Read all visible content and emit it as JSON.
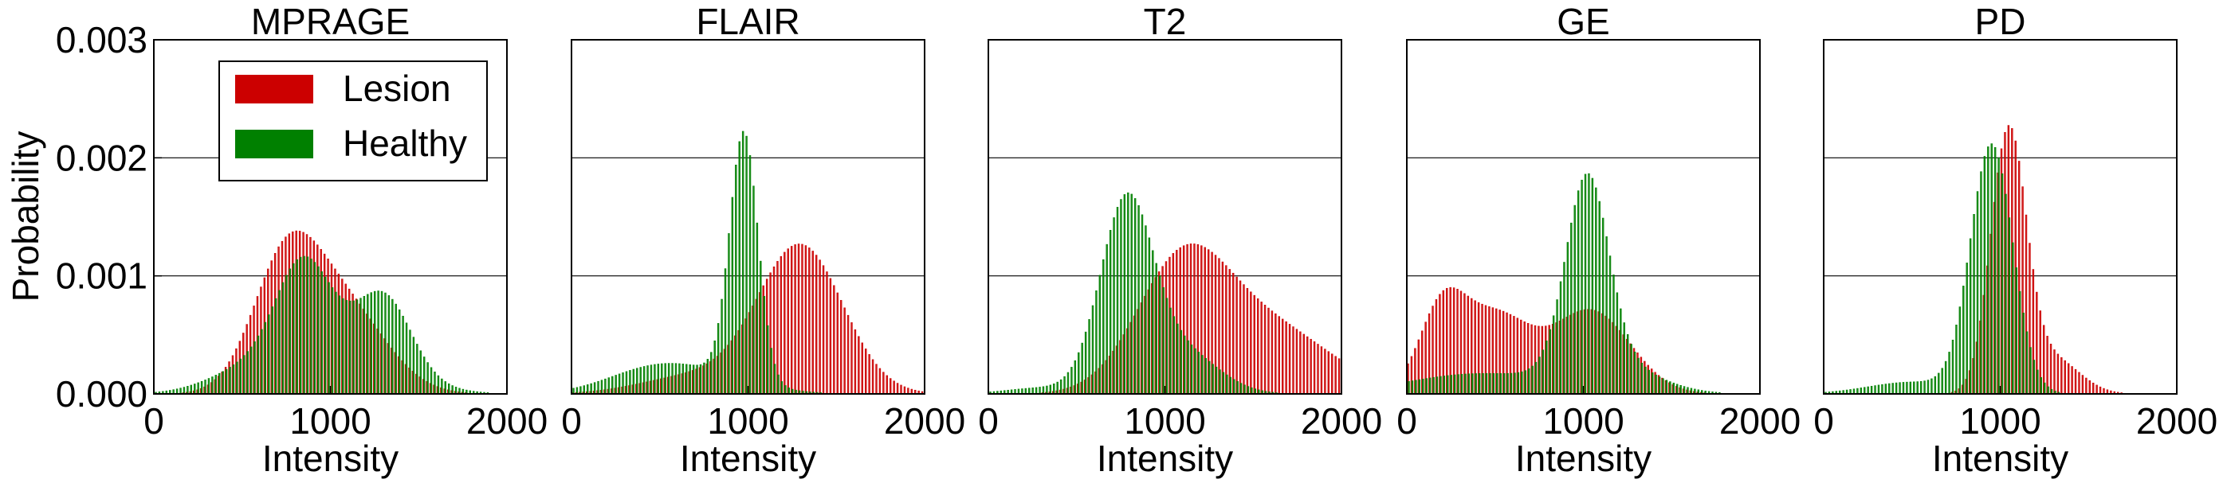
{
  "figure": {
    "ylabel": "Probability",
    "legend": {
      "position": "upper-left of first panel",
      "entries": [
        {
          "label": "Lesion",
          "color": "#cc0000"
        },
        {
          "label": "Healthy",
          "color": "#008000"
        }
      ]
    }
  },
  "chart_data": [
    {
      "type": "bar",
      "title": "MPRAGE",
      "xlabel": "Intensity",
      "ylabel": "Probability",
      "xlim": [
        0,
        2000
      ],
      "ylim": [
        0,
        0.003
      ],
      "xticks": [
        "0",
        "1000",
        "2000"
      ],
      "yticks": [
        "0.000",
        "0.001",
        "0.002",
        "0.003"
      ],
      "grid": "horizontal",
      "series": [
        {
          "name": "Lesion",
          "color": "#cc0000",
          "components": [
            [
              0.00105,
              750,
              190
            ],
            [
              0.00072,
              1080,
              240
            ]
          ]
        },
        {
          "name": "Healthy",
          "color": "#008000",
          "components": [
            [
              0.00075,
              840,
              150
            ],
            [
              0.00042,
              1000,
              330
            ],
            [
              0.00058,
              1310,
              150
            ],
            [
              0.00012,
              500,
              220
            ]
          ]
        }
      ]
    },
    {
      "type": "bar",
      "title": "FLAIR",
      "xlabel": "Intensity",
      "ylabel": "",
      "xlim": [
        0,
        2000
      ],
      "ylim": [
        0,
        0.003
      ],
      "xticks": [
        "0",
        "1000",
        "2000"
      ],
      "yticks": [],
      "grid": "horizontal",
      "series": [
        {
          "name": "Lesion",
          "color": "#cc0000",
          "components": [
            [
              0.00125,
              1300,
              240
            ],
            [
              0.00015,
              700,
              300
            ]
          ]
        },
        {
          "name": "Healthy",
          "color": "#008000",
          "components": [
            [
              0.0021,
              975,
              80
            ],
            [
              0.00018,
              700,
              300
            ],
            [
              0.00012,
              400,
              250
            ]
          ]
        }
      ]
    },
    {
      "type": "bar",
      "title": "T2",
      "xlabel": "Intensity",
      "ylabel": "",
      "xlim": [
        0,
        2000
      ],
      "ylim": [
        0,
        0.003
      ],
      "xticks": [
        "0",
        "1000",
        "2000"
      ],
      "yticks": [],
      "grid": "horizontal",
      "series": [
        {
          "name": "Lesion",
          "color": "#cc0000",
          "components": [
            [
              0.00105,
              1100,
              260
            ],
            [
              0.00055,
              1600,
              350
            ]
          ]
        },
        {
          "name": "Healthy",
          "color": "#008000",
          "components": [
            [
              0.0016,
              780,
              150
            ],
            [
              0.00035,
              1100,
              200
            ],
            [
              5e-05,
              300,
              200
            ]
          ]
        }
      ]
    },
    {
      "type": "bar",
      "title": "GE",
      "xlabel": "Intensity",
      "ylabel": "",
      "xlim": [
        0,
        2000
      ],
      "ylim": [
        0,
        0.003
      ],
      "xticks": [
        "0",
        "1000",
        "2000"
      ],
      "yticks": [],
      "grid": "horizontal",
      "series": [
        {
          "name": "Lesion",
          "color": "#cc0000",
          "components": [
            [
              0.00065,
              200,
              130
            ],
            [
              0.00065,
              500,
              200
            ],
            [
              0.0007,
              1050,
              220
            ]
          ]
        },
        {
          "name": "Healthy",
          "color": "#008000",
          "components": [
            [
              0.0016,
              1020,
              120
            ],
            [
              0.00025,
              1150,
              250
            ],
            [
              0.00017,
              400,
              400
            ]
          ]
        }
      ]
    },
    {
      "type": "bar",
      "title": "PD",
      "xlabel": "Intensity",
      "ylabel": "",
      "xlim": [
        0,
        2000
      ],
      "ylim": [
        0,
        0.003
      ],
      "xticks": [
        "0",
        "1000",
        "2000"
      ],
      "yticks": [],
      "grid": "horizontal",
      "series": [
        {
          "name": "Lesion",
          "color": "#cc0000",
          "components": [
            [
              0.0022,
              1050,
              100
            ],
            [
              0.0003,
              1300,
              150
            ]
          ]
        },
        {
          "name": "Healthy",
          "color": "#008000",
          "components": [
            [
              0.0021,
              950,
              120
            ],
            [
              0.0001,
              500,
              250
            ]
          ]
        }
      ]
    }
  ]
}
